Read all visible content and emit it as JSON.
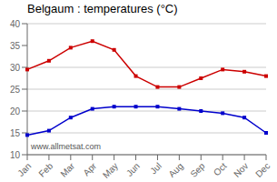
{
  "chart_data": {
    "type": "line",
    "title": "Belgaum : temperatures (°C)",
    "categories": [
      "Jan",
      "Feb",
      "Mar",
      "Apr",
      "May",
      "Jun",
      "Jul",
      "Aug",
      "Sep",
      "Oct",
      "Nov",
      "Dec"
    ],
    "series": [
      {
        "color": "#cc0000",
        "marker": "square",
        "values": [
          29.5,
          31.5,
          34.5,
          36.0,
          34.0,
          28.0,
          25.5,
          25.5,
          27.5,
          29.5,
          29.0,
          28.0
        ]
      },
      {
        "color": "#0000cc",
        "marker": "square",
        "values": [
          14.5,
          15.5,
          18.5,
          20.5,
          21.0,
          21.0,
          21.0,
          20.5,
          20.0,
          19.5,
          18.5,
          15.0
        ]
      }
    ],
    "ylim": [
      10,
      40
    ],
    "yticks": [
      10,
      15,
      20,
      25,
      30,
      35,
      40
    ],
    "grid": true,
    "annotations": [
      "www.allmetsat.com"
    ]
  }
}
